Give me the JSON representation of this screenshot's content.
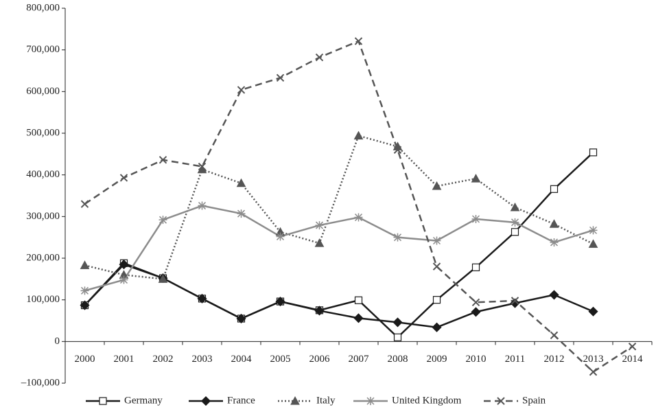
{
  "chart_data": {
    "type": "line",
    "categories": [
      "2000",
      "2001",
      "2002",
      "2003",
      "2004",
      "2005",
      "2006",
      "2007",
      "2008",
      "2009",
      "2010",
      "2011",
      "2012",
      "2013",
      "2014"
    ],
    "series": [
      {
        "name": "Germany",
        "color": "#1a1a1a",
        "marker": "square",
        "dash": "solid",
        "values": [
          87000,
          188000,
          152000,
          103000,
          55000,
          96000,
          75000,
          99000,
          10000,
          100000,
          178000,
          263000,
          366000,
          454000,
          null
        ]
      },
      {
        "name": "France",
        "color": "#1a1a1a",
        "marker": "diamond",
        "dash": "solid",
        "values": [
          87000,
          185000,
          152000,
          103000,
          55000,
          96000,
          74000,
          56000,
          46000,
          34000,
          71000,
          92000,
          112000,
          72000,
          null
        ]
      },
      {
        "name": "Italy",
        "color": "#555555",
        "marker": "triangle",
        "dash": "dotted",
        "values": [
          183000,
          160000,
          150000,
          413000,
          380000,
          263000,
          236000,
          494000,
          468000,
          373000,
          391000,
          322000,
          282000,
          234000,
          null
        ]
      },
      {
        "name": "United Kingdom",
        "color": "#8c8c8c",
        "marker": "asterisk",
        "dash": "solid",
        "values": [
          122000,
          148000,
          292000,
          326000,
          307000,
          252000,
          279000,
          298000,
          250000,
          242000,
          294000,
          286000,
          238000,
          267000,
          null
        ]
      },
      {
        "name": "Spain",
        "color": "#555555",
        "marker": "x",
        "dash": "dashed",
        "values": [
          330000,
          393000,
          436000,
          420000,
          604000,
          633000,
          682000,
          721000,
          460000,
          180000,
          94000,
          98000,
          15000,
          -73000,
          -12000
        ]
      }
    ],
    "ylim": [
      -100000,
      800000
    ],
    "yticks": [
      {
        "value": -100000,
        "label": "–100,000"
      },
      0,
      {
        "value": 100000,
        "label": "100,000"
      },
      {
        "value": 200000,
        "label": "200,000"
      },
      {
        "value": 300000,
        "label": "300,000"
      },
      {
        "value": 400000,
        "label": "400,000"
      },
      {
        "value": 500000,
        "label": "500,000"
      },
      {
        "value": 600000,
        "label": "600,000"
      },
      {
        "value": 700000,
        "label": "700,000"
      },
      {
        "value": 800000,
        "label": "800,000"
      }
    ],
    "legend": "bottom"
  }
}
